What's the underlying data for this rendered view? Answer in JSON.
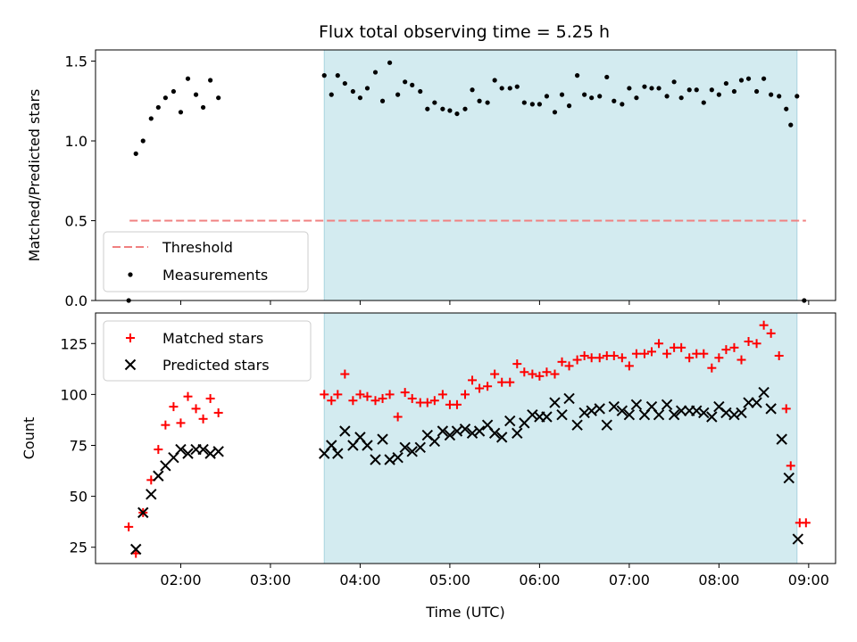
{
  "chart_data": {
    "type": "scatter",
    "title": "Flux total observing time = 5.25 h",
    "xlabel": "Time (UTC)",
    "x_unit": "hours UTC",
    "xlim": [
      1.05,
      9.3
    ],
    "x_ticks": [
      2,
      3,
      4,
      5,
      6,
      7,
      8,
      9
    ],
    "x_tick_labels": [
      "02:00",
      "03:00",
      "04:00",
      "05:00",
      "06:00",
      "07:00",
      "08:00",
      "09:00"
    ],
    "shaded_interval": [
      3.6,
      8.87
    ],
    "shaded_color": "#d3ebf0",
    "top": {
      "ylabel": "Matched/Predicted stars",
      "ylim": [
        0,
        1.57
      ],
      "y_ticks": [
        0,
        0.5,
        1.0,
        1.5
      ],
      "y_tick_labels": [
        "0.0",
        "0.5",
        "1.0",
        "1.5"
      ],
      "legend": {
        "position": "lower-left",
        "entries": [
          "Threshold",
          "Measurements"
        ]
      },
      "threshold": {
        "name": "Threshold",
        "y": 0.5,
        "x": [
          1.43,
          8.97
        ],
        "color": "#f08080"
      },
      "measurements": {
        "name": "Measurements",
        "color": "#000000",
        "points": [
          [
            1.42,
            0.0
          ],
          [
            1.5,
            0.92
          ],
          [
            1.58,
            1.0
          ],
          [
            1.67,
            1.14
          ],
          [
            1.75,
            1.21
          ],
          [
            1.83,
            1.27
          ],
          [
            1.92,
            1.31
          ],
          [
            2.0,
            1.18
          ],
          [
            2.08,
            1.39
          ],
          [
            2.17,
            1.29
          ],
          [
            2.25,
            1.21
          ],
          [
            2.33,
            1.38
          ],
          [
            2.42,
            1.27
          ],
          [
            3.6,
            1.41
          ],
          [
            3.68,
            1.29
          ],
          [
            3.75,
            1.41
          ],
          [
            3.83,
            1.36
          ],
          [
            3.92,
            1.31
          ],
          [
            4.0,
            1.27
          ],
          [
            4.08,
            1.33
          ],
          [
            4.17,
            1.43
          ],
          [
            4.25,
            1.25
          ],
          [
            4.33,
            1.49
          ],
          [
            4.42,
            1.29
          ],
          [
            4.5,
            1.37
          ],
          [
            4.58,
            1.35
          ],
          [
            4.67,
            1.31
          ],
          [
            4.75,
            1.2
          ],
          [
            4.83,
            1.24
          ],
          [
            4.92,
            1.2
          ],
          [
            5.0,
            1.19
          ],
          [
            5.08,
            1.17
          ],
          [
            5.17,
            1.2
          ],
          [
            5.25,
            1.32
          ],
          [
            5.33,
            1.25
          ],
          [
            5.42,
            1.24
          ],
          [
            5.5,
            1.38
          ],
          [
            5.58,
            1.33
          ],
          [
            5.67,
            1.33
          ],
          [
            5.75,
            1.34
          ],
          [
            5.83,
            1.24
          ],
          [
            5.92,
            1.23
          ],
          [
            6.0,
            1.23
          ],
          [
            6.08,
            1.28
          ],
          [
            6.17,
            1.18
          ],
          [
            6.25,
            1.29
          ],
          [
            6.33,
            1.22
          ],
          [
            6.42,
            1.41
          ],
          [
            6.5,
            1.29
          ],
          [
            6.58,
            1.27
          ],
          [
            6.67,
            1.28
          ],
          [
            6.75,
            1.4
          ],
          [
            6.83,
            1.25
          ],
          [
            6.92,
            1.23
          ],
          [
            7.0,
            1.33
          ],
          [
            7.08,
            1.27
          ],
          [
            7.17,
            1.34
          ],
          [
            7.25,
            1.33
          ],
          [
            7.33,
            1.33
          ],
          [
            7.42,
            1.28
          ],
          [
            7.5,
            1.37
          ],
          [
            7.58,
            1.27
          ],
          [
            7.67,
            1.32
          ],
          [
            7.75,
            1.32
          ],
          [
            7.83,
            1.24
          ],
          [
            7.92,
            1.32
          ],
          [
            8.0,
            1.29
          ],
          [
            8.08,
            1.36
          ],
          [
            8.17,
            1.31
          ],
          [
            8.25,
            1.38
          ],
          [
            8.33,
            1.39
          ],
          [
            8.42,
            1.31
          ],
          [
            8.5,
            1.39
          ],
          [
            8.58,
            1.29
          ],
          [
            8.67,
            1.28
          ],
          [
            8.75,
            1.2
          ],
          [
            8.8,
            1.1
          ],
          [
            8.87,
            1.28
          ],
          [
            8.95,
            0.0
          ]
        ]
      }
    },
    "bottom": {
      "ylabel": "Count",
      "ylim": [
        17,
        140
      ],
      "y_ticks": [
        25,
        50,
        75,
        100,
        125
      ],
      "y_tick_labels": [
        "25",
        "50",
        "75",
        "100",
        "125"
      ],
      "legend": {
        "position": "upper-left",
        "entries": [
          "Matched stars",
          "Predicted stars"
        ]
      },
      "matched": {
        "name": "Matched stars",
        "color": "#ff0000",
        "points": [
          [
            1.42,
            35
          ],
          [
            1.5,
            22
          ],
          [
            1.58,
            42
          ],
          [
            1.67,
            58
          ],
          [
            1.75,
            73
          ],
          [
            1.83,
            85
          ],
          [
            1.92,
            94
          ],
          [
            2.0,
            86
          ],
          [
            2.08,
            99
          ],
          [
            2.17,
            93
          ],
          [
            2.25,
            88
          ],
          [
            2.33,
            98
          ],
          [
            2.42,
            91
          ],
          [
            3.6,
            100
          ],
          [
            3.68,
            97
          ],
          [
            3.75,
            100
          ],
          [
            3.83,
            110
          ],
          [
            3.92,
            97
          ],
          [
            4.0,
            100
          ],
          [
            4.08,
            99
          ],
          [
            4.17,
            97
          ],
          [
            4.25,
            98
          ],
          [
            4.33,
            100
          ],
          [
            4.42,
            89
          ],
          [
            4.5,
            101
          ],
          [
            4.58,
            98
          ],
          [
            4.67,
            96
          ],
          [
            4.75,
            96
          ],
          [
            4.83,
            97
          ],
          [
            4.92,
            100
          ],
          [
            5.0,
            95
          ],
          [
            5.08,
            95
          ],
          [
            5.17,
            100
          ],
          [
            5.25,
            107
          ],
          [
            5.33,
            103
          ],
          [
            5.42,
            104
          ],
          [
            5.5,
            110
          ],
          [
            5.58,
            106
          ],
          [
            5.67,
            106
          ],
          [
            5.75,
            115
          ],
          [
            5.83,
            111
          ],
          [
            5.92,
            110
          ],
          [
            6.0,
            109
          ],
          [
            6.08,
            111
          ],
          [
            6.17,
            110
          ],
          [
            6.25,
            116
          ],
          [
            6.33,
            114
          ],
          [
            6.42,
            117
          ],
          [
            6.5,
            119
          ],
          [
            6.58,
            118
          ],
          [
            6.67,
            118
          ],
          [
            6.75,
            119
          ],
          [
            6.83,
            119
          ],
          [
            6.92,
            118
          ],
          [
            7.0,
            114
          ],
          [
            7.08,
            120
          ],
          [
            7.17,
            120
          ],
          [
            7.25,
            121
          ],
          [
            7.33,
            125
          ],
          [
            7.42,
            120
          ],
          [
            7.5,
            123
          ],
          [
            7.58,
            123
          ],
          [
            7.67,
            118
          ],
          [
            7.75,
            120
          ],
          [
            7.83,
            120
          ],
          [
            7.92,
            113
          ],
          [
            8.0,
            118
          ],
          [
            8.08,
            122
          ],
          [
            8.17,
            123
          ],
          [
            8.25,
            117
          ],
          [
            8.33,
            126
          ],
          [
            8.42,
            125
          ],
          [
            8.5,
            134
          ],
          [
            8.58,
            130
          ],
          [
            8.67,
            119
          ],
          [
            8.75,
            93
          ],
          [
            8.8,
            65
          ],
          [
            8.9,
            37
          ],
          [
            8.97,
            37
          ]
        ]
      },
      "predicted": {
        "name": "Predicted stars",
        "color": "#000000",
        "points": [
          [
            1.5,
            24
          ],
          [
            1.58,
            42
          ],
          [
            1.67,
            51
          ],
          [
            1.75,
            60
          ],
          [
            1.83,
            65
          ],
          [
            1.92,
            69
          ],
          [
            2.0,
            73
          ],
          [
            2.08,
            71
          ],
          [
            2.17,
            73
          ],
          [
            2.25,
            73
          ],
          [
            2.33,
            71
          ],
          [
            2.42,
            72
          ],
          [
            3.6,
            71
          ],
          [
            3.68,
            75
          ],
          [
            3.75,
            71
          ],
          [
            3.83,
            82
          ],
          [
            3.92,
            75
          ],
          [
            4.0,
            79
          ],
          [
            4.08,
            75
          ],
          [
            4.17,
            68
          ],
          [
            4.25,
            78
          ],
          [
            4.33,
            68
          ],
          [
            4.42,
            69
          ],
          [
            4.5,
            74
          ],
          [
            4.58,
            72
          ],
          [
            4.67,
            74
          ],
          [
            4.75,
            80
          ],
          [
            4.83,
            77
          ],
          [
            4.92,
            82
          ],
          [
            5.0,
            80
          ],
          [
            5.08,
            82
          ],
          [
            5.17,
            83
          ],
          [
            5.25,
            81
          ],
          [
            5.33,
            82
          ],
          [
            5.42,
            85
          ],
          [
            5.5,
            81
          ],
          [
            5.58,
            79
          ],
          [
            5.67,
            87
          ],
          [
            5.75,
            81
          ],
          [
            5.83,
            86
          ],
          [
            5.92,
            90
          ],
          [
            6.0,
            89
          ],
          [
            6.08,
            89
          ],
          [
            6.17,
            96
          ],
          [
            6.25,
            90
          ],
          [
            6.33,
            98
          ],
          [
            6.42,
            85
          ],
          [
            6.5,
            91
          ],
          [
            6.58,
            92
          ],
          [
            6.67,
            93
          ],
          [
            6.75,
            85
          ],
          [
            6.83,
            94
          ],
          [
            6.92,
            92
          ],
          [
            7.0,
            90
          ],
          [
            7.08,
            95
          ],
          [
            7.17,
            90
          ],
          [
            7.25,
            94
          ],
          [
            7.33,
            90
          ],
          [
            7.42,
            95
          ],
          [
            7.5,
            90
          ],
          [
            7.58,
            92
          ],
          [
            7.67,
            92
          ],
          [
            7.75,
            92
          ],
          [
            7.83,
            91
          ],
          [
            7.92,
            89
          ],
          [
            8.0,
            94
          ],
          [
            8.08,
            91
          ],
          [
            8.17,
            90
          ],
          [
            8.25,
            91
          ],
          [
            8.33,
            96
          ],
          [
            8.42,
            96
          ],
          [
            8.5,
            101
          ],
          [
            8.58,
            93
          ],
          [
            8.7,
            78
          ],
          [
            8.78,
            59
          ],
          [
            8.88,
            29
          ]
        ]
      }
    }
  }
}
